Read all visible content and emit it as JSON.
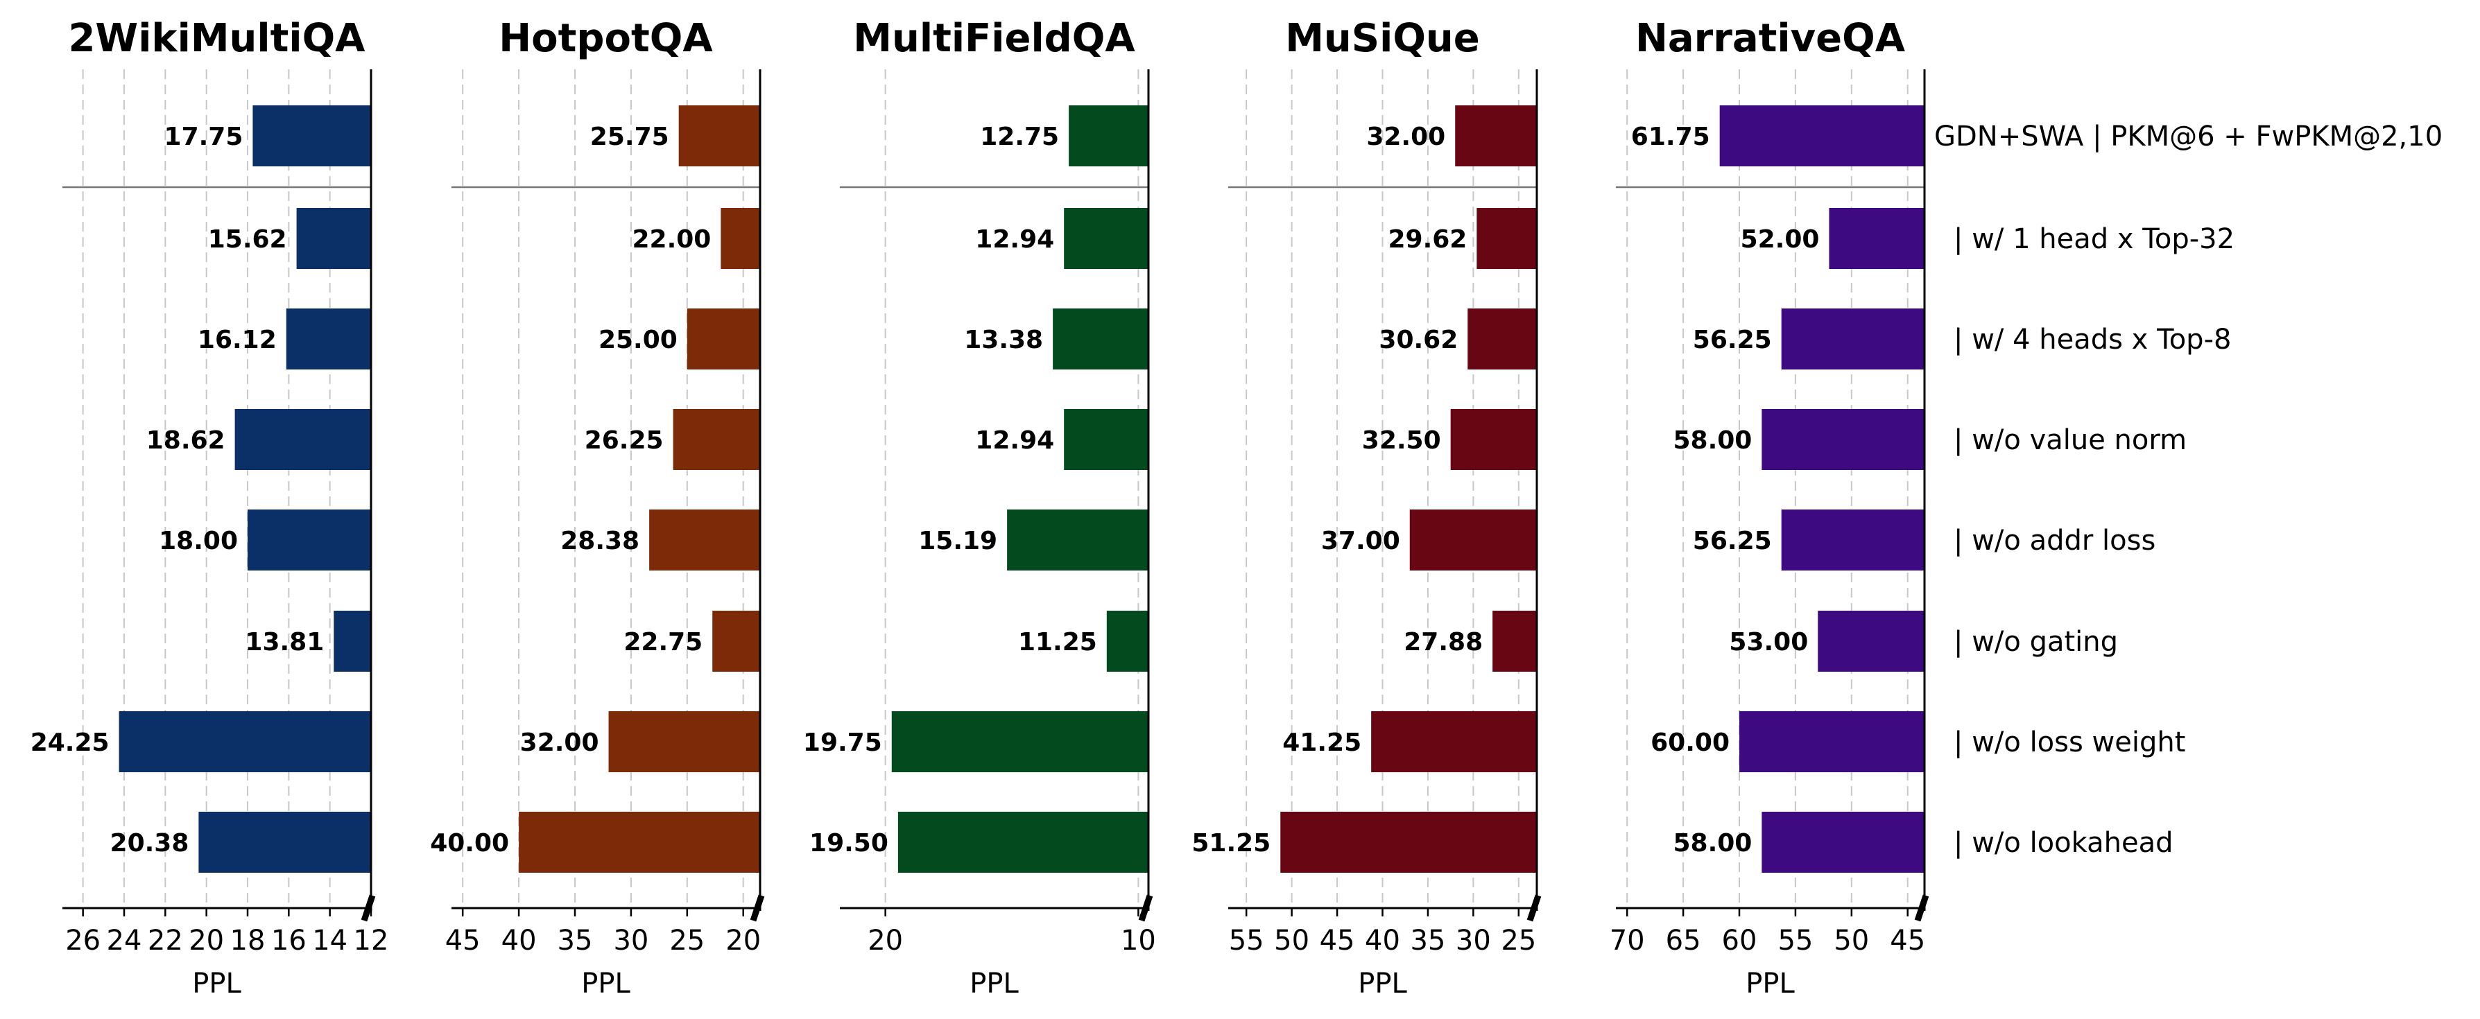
{
  "chart_data": [
    {
      "type": "bar",
      "orientation": "horizontal",
      "title": "2WikiMultiQA",
      "xlabel": "PPL",
      "xlim": [
        27,
        12
      ],
      "xticks": [
        "26",
        "24",
        "22",
        "20",
        "18",
        "16",
        "14",
        "12"
      ],
      "categories": [
        "GDN+SWA | PKM@6 + FwPKM@2,10",
        "| w/ 1 head x Top-32",
        "| w/ 4 heads x Top-8",
        "| w/o value norm",
        "| w/o addr loss",
        "| w/o gating",
        "| w/o loss weight",
        "| w/o lookahead"
      ],
      "values": [
        17.75,
        15.62,
        16.12,
        18.62,
        18.0,
        13.81,
        24.25,
        20.38
      ],
      "labels": [
        "17.75",
        "15.62",
        "16.12",
        "18.62",
        "18.00",
        "13.81",
        "24.25",
        "20.38"
      ],
      "color": "#0b3068"
    },
    {
      "type": "bar",
      "orientation": "horizontal",
      "title": "HotpotQA",
      "xlabel": "PPL",
      "xlim": [
        46,
        18.5
      ],
      "xticks": [
        "45",
        "40",
        "35",
        "30",
        "25",
        "20"
      ],
      "categories": [
        "GDN+SWA | PKM@6 + FwPKM@2,10",
        "| w/ 1 head x Top-32",
        "| w/ 4 heads x Top-8",
        "| w/o value norm",
        "| w/o addr loss",
        "| w/o gating",
        "| w/o loss weight",
        "| w/o lookahead"
      ],
      "values": [
        25.75,
        22.0,
        25.0,
        26.25,
        28.38,
        22.75,
        32.0,
        40.0
      ],
      "labels": [
        "25.75",
        "22.00",
        "25.00",
        "26.25",
        "28.38",
        "22.75",
        "32.00",
        "40.00"
      ],
      "color": "#7d2a08"
    },
    {
      "type": "bar",
      "orientation": "horizontal",
      "title": "MultiFieldQA",
      "xlabel": "PPL",
      "xlim": [
        21.8,
        9.6
      ],
      "xticks": [
        "20",
        "10"
      ],
      "categories": [
        "GDN+SWA | PKM@6 + FwPKM@2,10",
        "| w/ 1 head x Top-32",
        "| w/ 4 heads x Top-8",
        "| w/o value norm",
        "| w/o addr loss",
        "| w/o gating",
        "| w/o loss weight",
        "| w/o lookahead"
      ],
      "values": [
        12.75,
        12.94,
        13.38,
        12.94,
        15.19,
        11.25,
        19.75,
        19.5
      ],
      "labels": [
        "12.75",
        "12.94",
        "13.38",
        "12.94",
        "15.19",
        "11.25",
        "19.75",
        "19.50"
      ],
      "color": "#044a1f"
    },
    {
      "type": "bar",
      "orientation": "horizontal",
      "title": "MuSiQue",
      "xlabel": "PPL",
      "xlim": [
        57,
        23
      ],
      "xticks": [
        "55",
        "50",
        "45",
        "40",
        "35",
        "30",
        "25"
      ],
      "categories": [
        "GDN+SWA | PKM@6 + FwPKM@2,10",
        "| w/ 1 head x Top-32",
        "| w/ 4 heads x Top-8",
        "| w/o value norm",
        "| w/o addr loss",
        "| w/o gating",
        "| w/o loss weight",
        "| w/o lookahead"
      ],
      "values": [
        32.0,
        29.62,
        30.62,
        32.5,
        37.0,
        27.88,
        41.25,
        51.25
      ],
      "labels": [
        "32.00",
        "29.62",
        "30.62",
        "32.50",
        "37.00",
        "27.88",
        "41.25",
        "51.25"
      ],
      "color": "#680713"
    },
    {
      "type": "bar",
      "orientation": "horizontal",
      "title": "NarrativeQA",
      "xlabel": "PPL",
      "xlim": [
        71,
        43.5
      ],
      "xticks": [
        "70",
        "65",
        "60",
        "55",
        "50",
        "45"
      ],
      "categories": [
        "GDN+SWA | PKM@6 + FwPKM@2,10",
        "| w/ 1 head x Top-32",
        "| w/ 4 heads x Top-8",
        "| w/o value norm",
        "| w/o addr loss",
        "| w/o gating",
        "| w/o loss weight",
        "| w/o lookahead"
      ],
      "values": [
        61.75,
        52.0,
        56.25,
        58.0,
        56.25,
        53.0,
        60.0,
        58.0
      ],
      "labels": [
        "61.75",
        "52.00",
        "56.25",
        "58.00",
        "56.25",
        "53.00",
        "60.00",
        "58.00"
      ],
      "color": "#3e0a82"
    }
  ],
  "row_labels": [
    "GDN+SWA | PKM@6 + FwPKM@2,10",
    "| w/ 1 head x Top-32",
    "| w/ 4 heads x Top-8",
    "| w/o value norm",
    "| w/o addr loss",
    "| w/o gating",
    "| w/o loss weight",
    "| w/o lookahead"
  ]
}
